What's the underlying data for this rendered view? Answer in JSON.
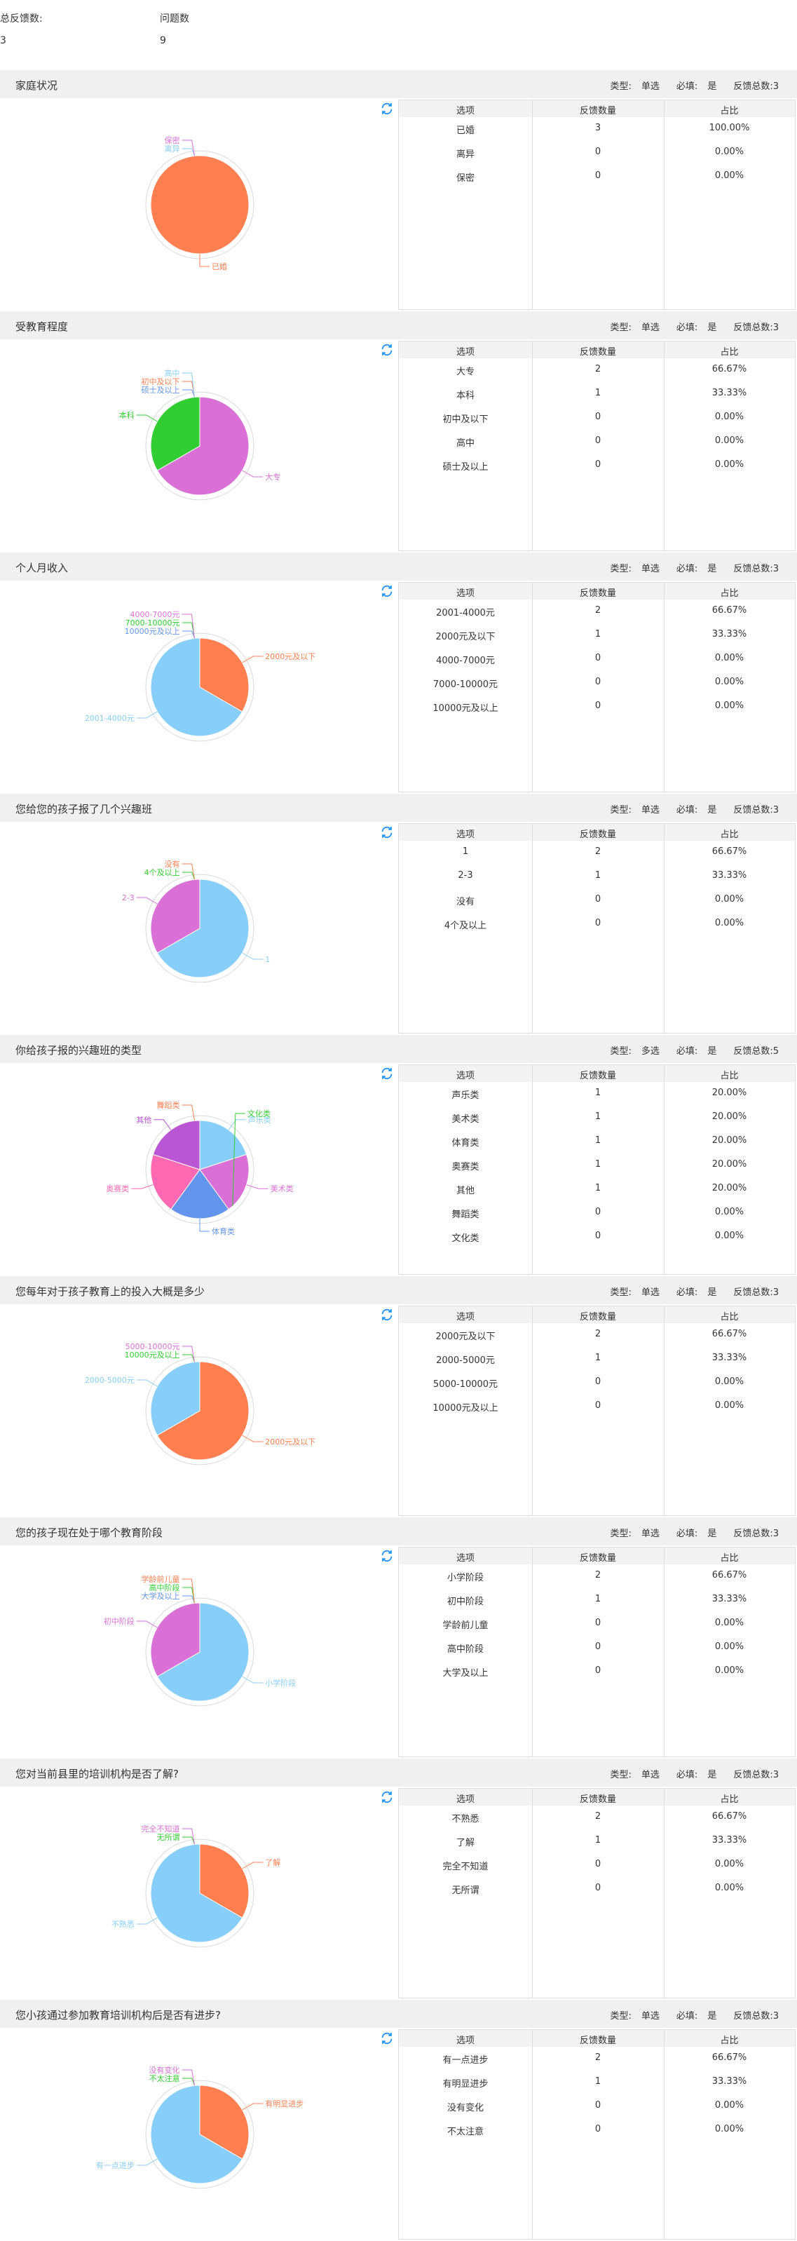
{
  "summary": {
    "total_feedback_label": "总反馈数:",
    "total_feedback_value": "3",
    "question_count_label": "问题数",
    "question_count_value": "9"
  },
  "meta_labels": {
    "type": "类型:",
    "required": "必填:",
    "total": "反馈总数:"
  },
  "table_headers": {
    "option": "选项",
    "count": "反馈数量",
    "ratio": "占比"
  },
  "colors": {
    "orange": "#ff7f50",
    "lightblue": "#87cefa",
    "orchid": "#da70d6",
    "green": "#32cd32",
    "blue": "#6495ed",
    "pink": "#ff69b4",
    "purple": "#ba55d3",
    "header_bg": "#f0f0f0",
    "refresh_icon": "#1e90ff"
  },
  "questions": [
    {
      "title": "家庭状况",
      "type": "单选",
      "required": "是",
      "total": "3",
      "rows": [
        {
          "option": "已婚",
          "count": "3",
          "ratio": "100.00%"
        },
        {
          "option": "离异",
          "count": "0",
          "ratio": "0.00%"
        },
        {
          "option": "保密",
          "count": "0",
          "ratio": "0.00%"
        }
      ]
    },
    {
      "title": "受教育程度",
      "type": "单选",
      "required": "是",
      "total": "3",
      "rows": [
        {
          "option": "大专",
          "count": "2",
          "ratio": "66.67%"
        },
        {
          "option": "本科",
          "count": "1",
          "ratio": "33.33%"
        },
        {
          "option": "初中及以下",
          "count": "0",
          "ratio": "0.00%"
        },
        {
          "option": "高中",
          "count": "0",
          "ratio": "0.00%"
        },
        {
          "option": "硕士及以上",
          "count": "0",
          "ratio": "0.00%"
        }
      ]
    },
    {
      "title": "个人月收入",
      "type": "单选",
      "required": "是",
      "total": "3",
      "rows": [
        {
          "option": "2001-4000元",
          "count": "2",
          "ratio": "66.67%"
        },
        {
          "option": "2000元及以下",
          "count": "1",
          "ratio": "33.33%"
        },
        {
          "option": "4000-7000元",
          "count": "0",
          "ratio": "0.00%"
        },
        {
          "option": "7000-10000元",
          "count": "0",
          "ratio": "0.00%"
        },
        {
          "option": "10000元及以上",
          "count": "0",
          "ratio": "0.00%"
        }
      ]
    },
    {
      "title": "您给您的孩子报了几个兴趣班",
      "type": "单选",
      "required": "是",
      "total": "3",
      "rows": [
        {
          "option": "1",
          "count": "2",
          "ratio": "66.67%"
        },
        {
          "option": "2-3",
          "count": "1",
          "ratio": "33.33%"
        },
        {
          "option": "没有",
          "count": "0",
          "ratio": "0.00%"
        },
        {
          "option": "4个及以上",
          "count": "0",
          "ratio": "0.00%"
        }
      ]
    },
    {
      "title": "你给孩子报的兴趣班的类型",
      "type": "多选",
      "required": "是",
      "total": "5",
      "rows": [
        {
          "option": "声乐类",
          "count": "1",
          "ratio": "20.00%"
        },
        {
          "option": "美术类",
          "count": "1",
          "ratio": "20.00%"
        },
        {
          "option": "体育类",
          "count": "1",
          "ratio": "20.00%"
        },
        {
          "option": "奥赛类",
          "count": "1",
          "ratio": "20.00%"
        },
        {
          "option": "其他",
          "count": "1",
          "ratio": "20.00%"
        },
        {
          "option": "舞蹈类",
          "count": "0",
          "ratio": "0.00%"
        },
        {
          "option": "文化类",
          "count": "0",
          "ratio": "0.00%"
        }
      ]
    },
    {
      "title": "您每年对于孩子教育上的投入大概是多少",
      "type": "单选",
      "required": "是",
      "total": "3",
      "rows": [
        {
          "option": "2000元及以下",
          "count": "2",
          "ratio": "66.67%"
        },
        {
          "option": "2000-5000元",
          "count": "1",
          "ratio": "33.33%"
        },
        {
          "option": "5000-10000元",
          "count": "0",
          "ratio": "0.00%"
        },
        {
          "option": "10000元及以上",
          "count": "0",
          "ratio": "0.00%"
        }
      ]
    },
    {
      "title": "您的孩子现在处于哪个教育阶段",
      "type": "单选",
      "required": "是",
      "total": "3",
      "rows": [
        {
          "option": "小学阶段",
          "count": "2",
          "ratio": "66.67%"
        },
        {
          "option": "初中阶段",
          "count": "1",
          "ratio": "33.33%"
        },
        {
          "option": "学龄前儿童",
          "count": "0",
          "ratio": "0.00%"
        },
        {
          "option": "高中阶段",
          "count": "0",
          "ratio": "0.00%"
        },
        {
          "option": "大学及以上",
          "count": "0",
          "ratio": "0.00%"
        }
      ]
    },
    {
      "title": "您对当前县里的培训机构是否了解?",
      "type": "单选",
      "required": "是",
      "total": "3",
      "rows": [
        {
          "option": "不熟悉",
          "count": "2",
          "ratio": "66.67%"
        },
        {
          "option": "了解",
          "count": "1",
          "ratio": "33.33%"
        },
        {
          "option": "完全不知道",
          "count": "0",
          "ratio": "0.00%"
        },
        {
          "option": "无所谓",
          "count": "0",
          "ratio": "0.00%"
        }
      ]
    },
    {
      "title": "您小孩通过参加教育培训机构后是否有进步?",
      "type": "单选",
      "required": "是",
      "total": "3",
      "rows": [
        {
          "option": "有一点进步",
          "count": "2",
          "ratio": "66.67%"
        },
        {
          "option": "有明显进步",
          "count": "1",
          "ratio": "33.33%"
        },
        {
          "option": "没有变化",
          "count": "0",
          "ratio": "0.00%"
        },
        {
          "option": "不太注意",
          "count": "0",
          "ratio": "0.00%"
        }
      ]
    }
  ],
  "chart_data": [
    {
      "type": "pie",
      "slices": [
        {
          "label": "已婚",
          "value": 3,
          "color": "#ff7f50"
        },
        {
          "label": "离异",
          "value": 0,
          "color": "#87cefa"
        },
        {
          "label": "保密",
          "value": 0,
          "color": "#da70d6"
        }
      ]
    },
    {
      "type": "pie",
      "slices": [
        {
          "label": "大专",
          "value": 2,
          "color": "#da70d6"
        },
        {
          "label": "本科",
          "value": 1,
          "color": "#32cd32"
        },
        {
          "label": "硕士及以上",
          "value": 0,
          "color": "#6495ed"
        },
        {
          "label": "初中及以下",
          "value": 0,
          "color": "#ff7f50"
        },
        {
          "label": "高中",
          "value": 0,
          "color": "#87cefa"
        }
      ]
    },
    {
      "type": "pie",
      "slices": [
        {
          "label": "2000元及以下",
          "value": 1,
          "color": "#ff7f50"
        },
        {
          "label": "2001-4000元",
          "value": 2,
          "color": "#87cefa"
        },
        {
          "label": "10000元及以上",
          "value": 0,
          "color": "#6495ed"
        },
        {
          "label": "7000-10000元",
          "value": 0,
          "color": "#32cd32"
        },
        {
          "label": "4000-7000元",
          "value": 0,
          "color": "#da70d6"
        }
      ]
    },
    {
      "type": "pie",
      "slices": [
        {
          "label": "1",
          "value": 2,
          "color": "#87cefa"
        },
        {
          "label": "2-3",
          "value": 1,
          "color": "#da70d6"
        },
        {
          "label": "4个及以上",
          "value": 0,
          "color": "#32cd32"
        },
        {
          "label": "没有",
          "value": 0,
          "color": "#ff7f50"
        }
      ]
    },
    {
      "type": "pie",
      "slices": [
        {
          "label": "声乐类",
          "value": 1,
          "color": "#87cefa"
        },
        {
          "label": "美术类",
          "value": 1,
          "color": "#da70d6"
        },
        {
          "label": "文化类",
          "value": 0,
          "color": "#32cd32"
        },
        {
          "label": "体育类",
          "value": 1,
          "color": "#6495ed"
        },
        {
          "label": "奥赛类",
          "value": 1,
          "color": "#ff69b4"
        },
        {
          "label": "其他",
          "value": 1,
          "color": "#ba55d3"
        },
        {
          "label": "舞蹈类",
          "value": 0,
          "color": "#ff7f50"
        }
      ]
    },
    {
      "type": "pie",
      "slices": [
        {
          "label": "2000元及以下",
          "value": 2,
          "color": "#ff7f50"
        },
        {
          "label": "2000-5000元",
          "value": 1,
          "color": "#87cefa"
        },
        {
          "label": "10000元及以上",
          "value": 0,
          "color": "#32cd32"
        },
        {
          "label": "5000-10000元",
          "value": 0,
          "color": "#da70d6"
        }
      ]
    },
    {
      "type": "pie",
      "slices": [
        {
          "label": "小学阶段",
          "value": 2,
          "color": "#87cefa"
        },
        {
          "label": "初中阶段",
          "value": 1,
          "color": "#da70d6"
        },
        {
          "label": "大学及以上",
          "value": 0,
          "color": "#6495ed"
        },
        {
          "label": "高中阶段",
          "value": 0,
          "color": "#32cd32"
        },
        {
          "label": "学龄前儿童",
          "value": 0,
          "color": "#ff7f50"
        }
      ]
    },
    {
      "type": "pie",
      "slices": [
        {
          "label": "了解",
          "value": 1,
          "color": "#ff7f50"
        },
        {
          "label": "不熟悉",
          "value": 2,
          "color": "#87cefa"
        },
        {
          "label": "无所谓",
          "value": 0,
          "color": "#32cd32"
        },
        {
          "label": "完全不知道",
          "value": 0,
          "color": "#da70d6"
        }
      ]
    },
    {
      "type": "pie",
      "slices": [
        {
          "label": "有明显进步",
          "value": 1,
          "color": "#ff7f50"
        },
        {
          "label": "有一点进步",
          "value": 2,
          "color": "#87cefa"
        },
        {
          "label": "不太注意",
          "value": 0,
          "color": "#32cd32"
        },
        {
          "label": "没有变化",
          "value": 0,
          "color": "#da70d6"
        }
      ]
    }
  ]
}
